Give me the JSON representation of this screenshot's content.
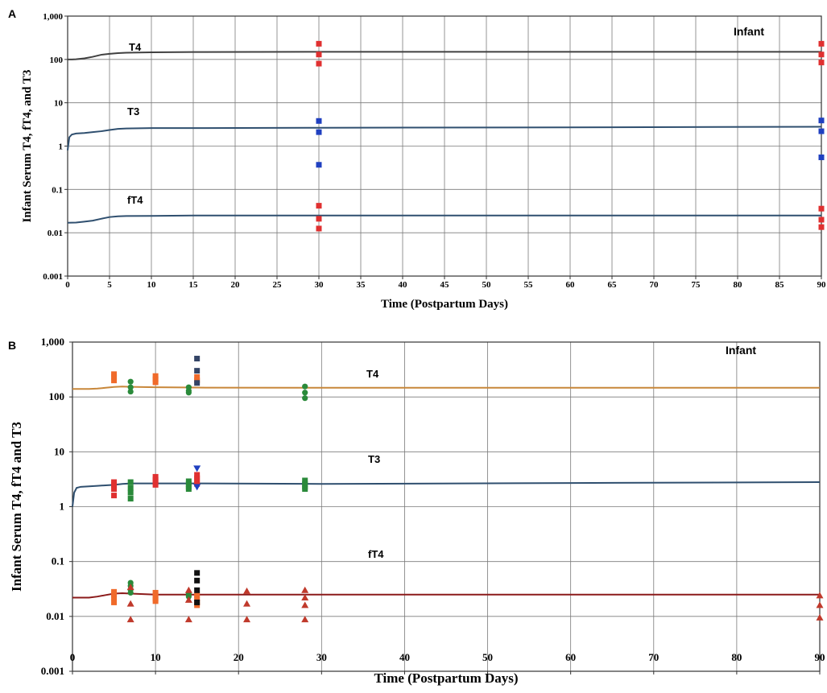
{
  "chart_data": [
    {
      "panel": "A",
      "type": "line",
      "annotation": "Infant",
      "xlabel": "Time (Postpartum Days)",
      "ylabel": "Infant Serum T4, fT4, and T3",
      "y_scale": "log",
      "xlim": [
        0,
        90
      ],
      "ylim": [
        0.001,
        1000
      ],
      "x_ticks": [
        "0",
        "5",
        "10",
        "15",
        "20",
        "25",
        "30",
        "35",
        "40",
        "45",
        "50",
        "55",
        "60",
        "65",
        "70",
        "75",
        "80",
        "85",
        "90"
      ],
      "y_ticks": [
        "0.001",
        "0.01",
        "0.1",
        "1",
        "10",
        "100",
        "1,000"
      ],
      "grid": true,
      "series": [
        {
          "name": "T4",
          "color": "#404040",
          "x": [
            0,
            0.5,
            1,
            2,
            3,
            4,
            5,
            6,
            7,
            10,
            15,
            30,
            60,
            90
          ],
          "values": [
            100,
            100,
            101,
            106,
            115,
            128,
            135,
            140,
            143,
            146,
            148,
            150,
            150,
            150
          ]
        },
        {
          "name": "T3",
          "color": "#2f4f6f",
          "x": [
            0,
            0.2,
            0.5,
            1,
            2,
            3,
            4,
            5,
            6,
            7,
            10,
            15,
            30,
            60,
            90
          ],
          "values": [
            0.8,
            1.6,
            1.85,
            1.95,
            2.0,
            2.1,
            2.2,
            2.35,
            2.5,
            2.55,
            2.6,
            2.6,
            2.65,
            2.7,
            2.8
          ]
        },
        {
          "name": "fT4",
          "color": "#2f4f6f",
          "x": [
            0,
            1,
            2,
            3,
            4,
            5,
            6,
            7,
            10,
            15,
            30,
            60,
            90
          ],
          "values": [
            0.017,
            0.0172,
            0.018,
            0.019,
            0.021,
            0.023,
            0.024,
            0.0243,
            0.0245,
            0.025,
            0.025,
            0.025,
            0.025
          ]
        }
      ],
      "markers": [
        {
          "shape": "square",
          "color": "#e03030",
          "x": 30,
          "values": [
            230,
            130,
            80
          ]
        },
        {
          "shape": "square",
          "color": "#2040c0",
          "x": 30,
          "values": [
            3.8,
            2.1,
            0.37
          ]
        },
        {
          "shape": "square",
          "color": "#e03030",
          "x": 30,
          "values": [
            0.042,
            0.021,
            0.0125
          ]
        },
        {
          "shape": "square",
          "color": "#e03030",
          "x": 90,
          "values": [
            230,
            130,
            85
          ]
        },
        {
          "shape": "square",
          "color": "#2040c0",
          "x": 90,
          "values": [
            3.9,
            2.2,
            0.55
          ]
        },
        {
          "shape": "square",
          "color": "#e03030",
          "x": 90,
          "values": [
            0.036,
            0.02,
            0.0135
          ]
        }
      ]
    },
    {
      "panel": "B",
      "type": "line",
      "annotation": "Infant",
      "xlabel": "Time (Postpartum Days)",
      "ylabel": "Infant Serum T4, fT4 and T3",
      "y_scale": "log",
      "xlim": [
        0,
        90
      ],
      "ylim": [
        0.001,
        1000
      ],
      "x_ticks": [
        "0",
        "10",
        "20",
        "30",
        "40",
        "50",
        "60",
        "70",
        "80",
        "90"
      ],
      "y_ticks": [
        "0.001",
        "0.01",
        "0.1",
        "1",
        "10",
        "100",
        "1,000"
      ],
      "grid": true,
      "series": [
        {
          "name": "T4",
          "color": "#c8873a",
          "x": [
            0,
            2,
            3,
            4,
            5,
            6,
            7,
            10,
            15,
            30,
            60,
            90
          ],
          "values": [
            140,
            140,
            142,
            147,
            152,
            155,
            153,
            150,
            148,
            147,
            147,
            147
          ]
        },
        {
          "name": "T3",
          "color": "#2f4f6f",
          "x": [
            0,
            0.2,
            0.5,
            1,
            2,
            3,
            4,
            5,
            6,
            7,
            10,
            15,
            30,
            60,
            90
          ],
          "values": [
            1.0,
            1.8,
            2.2,
            2.3,
            2.35,
            2.4,
            2.45,
            2.5,
            2.6,
            2.65,
            2.65,
            2.65,
            2.6,
            2.7,
            2.8
          ]
        },
        {
          "name": "fT4",
          "color": "#8b1a1a",
          "x": [
            0,
            2,
            3,
            4,
            5,
            6,
            7,
            10,
            15,
            30,
            60,
            90
          ],
          "values": [
            0.022,
            0.022,
            0.023,
            0.0245,
            0.026,
            0.0265,
            0.026,
            0.025,
            0.025,
            0.025,
            0.025,
            0.025
          ]
        }
      ],
      "markers": [
        {
          "shape": "square",
          "color": "#f06a2a",
          "x": 5,
          "values": [
            260,
            230,
            200
          ]
        },
        {
          "shape": "square",
          "color": "#f06a2a",
          "x": 10,
          "values": [
            240,
            210,
            185
          ]
        },
        {
          "shape": "square",
          "color": "#f06a2a",
          "x": 15,
          "values": [
            230,
            200
          ]
        },
        {
          "shape": "square",
          "color": "#334466",
          "x": 15,
          "values": [
            500,
            300,
            180
          ]
        },
        {
          "shape": "circle",
          "color": "#2a8a3a",
          "x": 7,
          "values": [
            190,
            150,
            125
          ]
        },
        {
          "shape": "circle",
          "color": "#2a8a3a",
          "x": 14,
          "values": [
            150,
            130,
            120
          ]
        },
        {
          "shape": "circle",
          "color": "#2a8a3a",
          "x": 28,
          "values": [
            155,
            120,
            95
          ]
        },
        {
          "shape": "square",
          "color": "#e03030",
          "x": 5,
          "values": [
            2.8,
            2.5,
            2.1,
            1.6
          ]
        },
        {
          "shape": "square",
          "color": "#2a8a3a",
          "x": 7,
          "values": [
            2.8,
            2.2,
            1.8,
            1.4
          ]
        },
        {
          "shape": "square",
          "color": "#e03030",
          "x": 10,
          "values": [
            3.5,
            3.1,
            2.8,
            2.5
          ]
        },
        {
          "shape": "square",
          "color": "#2a8a3a",
          "x": 14,
          "values": [
            2.9,
            2.6,
            2.3,
            2.1
          ]
        },
        {
          "shape": "square",
          "color": "#e03030",
          "x": 15,
          "values": [
            3.8,
            3.3,
            3.0,
            2.6
          ]
        },
        {
          "shape": "triangle-down",
          "color": "#2040c0",
          "x": 15,
          "values": [
            5.0,
            2.3
          ]
        },
        {
          "shape": "square",
          "color": "#2a8a3a",
          "x": 28,
          "values": [
            3.0,
            2.6,
            2.3,
            2.1
          ]
        },
        {
          "shape": "square",
          "color": "#f06a2a",
          "x": 5,
          "values": [
            0.028,
            0.025,
            0.022,
            0.018
          ]
        },
        {
          "shape": "square",
          "color": "#f06a2a",
          "x": 10,
          "values": [
            0.027,
            0.024,
            0.021,
            0.019
          ]
        },
        {
          "shape": "square",
          "color": "#f06a2a",
          "x": 15,
          "values": [
            0.024,
            0.021,
            0.018,
            0.016
          ]
        },
        {
          "shape": "square",
          "color": "#111111",
          "x": 15,
          "values": [
            0.062,
            0.045,
            0.03,
            0.018
          ]
        },
        {
          "shape": "circle",
          "color": "#2a8a3a",
          "x": 7,
          "values": [
            0.041,
            0.036,
            0.031,
            0.027
          ]
        },
        {
          "shape": "circle",
          "color": "#2a8a3a",
          "x": 14,
          "values": [
            0.026,
            0.023
          ]
        },
        {
          "shape": "triangle",
          "color": "#c0392b",
          "x": 7,
          "values": [
            0.034,
            0.017,
            0.0088
          ]
        },
        {
          "shape": "triangle",
          "color": "#c0392b",
          "x": 14,
          "values": [
            0.03,
            0.02,
            0.0088
          ]
        },
        {
          "shape": "triangle",
          "color": "#c0392b",
          "x": 21,
          "values": [
            0.029,
            0.017,
            0.0088
          ]
        },
        {
          "shape": "triangle",
          "color": "#c0392b",
          "x": 28,
          "values": [
            0.03,
            0.022,
            0.016,
            0.0088
          ]
        },
        {
          "shape": "triangle",
          "color": "#c0392b",
          "x": 90,
          "values": [
            0.024,
            0.016,
            0.0095
          ]
        }
      ]
    }
  ]
}
